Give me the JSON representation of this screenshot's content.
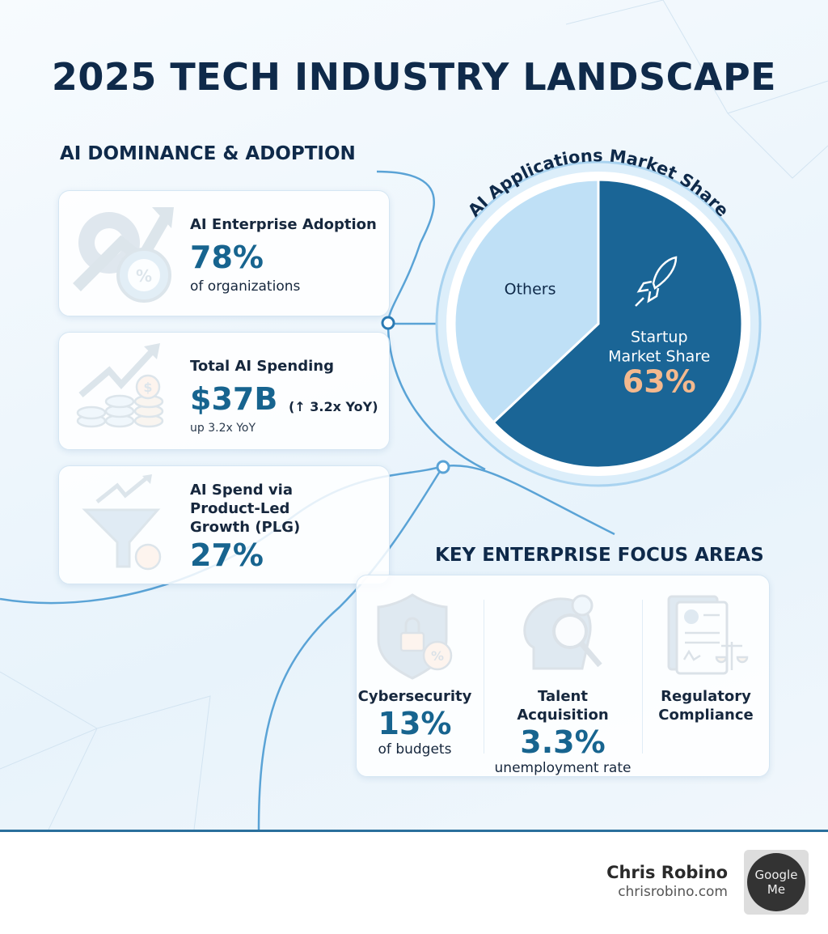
{
  "header": {
    "title": "2025 TECH INDUSTRY LANDSCAPE"
  },
  "section_ai": {
    "heading": "AI DOMINANCE & ADOPTION",
    "cards": [
      {
        "label": "AI Enterprise Adoption",
        "stat": "78%",
        "note": "of organizations"
      },
      {
        "label": "Total AI Spending",
        "stat": "$37B",
        "stat_note": "(↑ 3.2x YoY)",
        "note": "up 3.2x YoY"
      },
      {
        "label": "AI Spend via Product-Led Growth (PLG)",
        "stat": "27%"
      }
    ]
  },
  "chart_data": {
    "type": "pie",
    "title": "AI Applications Market Share",
    "categories": [
      "Startup Market Share",
      "Others"
    ],
    "values": [
      63,
      37
    ],
    "value_labels": [
      "63%",
      null
    ],
    "colors": [
      "#1a6596",
      "#bfe0f6"
    ]
  },
  "section_focus": {
    "heading": "KEY ENTERPRISE FOCUS AREAS",
    "items": [
      {
        "label": "Cybersecurity",
        "stat": "13%",
        "note": "of budgets"
      },
      {
        "label": "Talent Acquisition",
        "stat": "3.3%",
        "note": "unemployment rate"
      },
      {
        "label": "Regulatory Compliance"
      }
    ]
  },
  "footer": {
    "name": "Chris Robino",
    "site": "chrisrobino.com",
    "logo": "Google Me"
  }
}
